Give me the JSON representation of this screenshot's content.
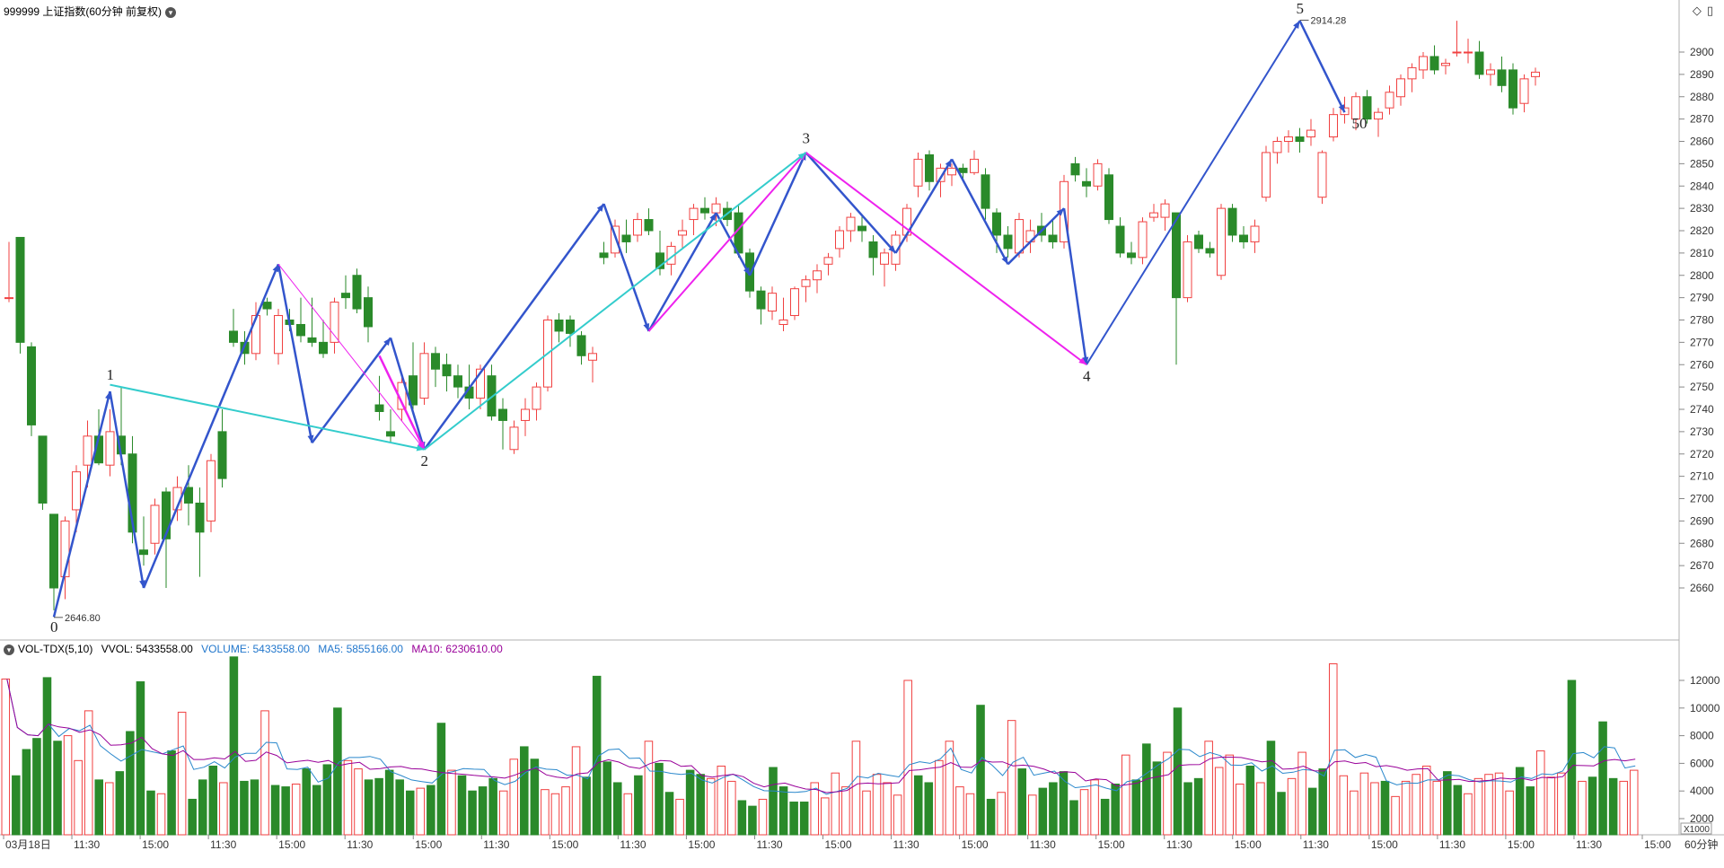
{
  "header": {
    "title": "999999 上证指数(60分钟 前复权)",
    "dropdown_icon": "chevron-down-icon",
    "right_icons": [
      "diamond-icon",
      "panel-icon"
    ]
  },
  "volume_panel": {
    "indicator": "VOL-TDX(5,10)",
    "vvol": "VVOL: 5433558.00",
    "volume": "VOLUME: 5433558.00",
    "ma5": "MA5: 5855166.00",
    "ma10": "MA10: 6230610.00",
    "unit": "X1000"
  },
  "time_axis": {
    "labels": [
      "03月18日",
      "11:30",
      "15:00",
      "11:30",
      "15:00",
      "11:30",
      "15:00",
      "11:30",
      "15:00",
      "11:30",
      "15:00",
      "11:30",
      "15:00",
      "11:30",
      "15:00",
      "11:30",
      "15:00",
      "11:30",
      "15:00",
      "11:30",
      "15:00",
      "11:30",
      "15:00",
      "11:30",
      "15:00"
    ],
    "period": "60分钟"
  },
  "colors": {
    "up": "#f04040",
    "down": "#2a8a2a",
    "wave_main": "#3355cc",
    "wave_magenta": "#ee22ee",
    "wave_cyan": "#33cccc",
    "ma5": "#2a88cc",
    "ma10": "#990099",
    "volume_label": "#2277cc"
  },
  "chart_data": [
    {
      "type": "candlestick",
      "title": "999999 上证指数(60分钟 前复权)",
      "y_ticks": [
        2660,
        2670,
        2680,
        2690,
        2700,
        2710,
        2720,
        2730,
        2740,
        2750,
        2760,
        2770,
        2780,
        2790,
        2800,
        2810,
        2820,
        2830,
        2840,
        2850,
        2860,
        2870,
        2880,
        2890,
        2900
      ],
      "ylim": [
        2642,
        2919
      ],
      "annotations": {
        "low_value": "2646.80",
        "high_value": "2914.28",
        "wave_labels": [
          "0",
          "1",
          "2",
          "3",
          "4",
          "5",
          "50"
        ]
      },
      "candles": [
        [
          2790,
          2815,
          2788,
          2790
        ],
        [
          2817,
          2817,
          2765,
          2770
        ],
        [
          2768,
          2770,
          2728,
          2733
        ],
        [
          2728,
          2728,
          2695,
          2698
        ],
        [
          2693,
          2693,
          2650,
          2660
        ],
        [
          2665,
          2692,
          2655,
          2690
        ],
        [
          2695,
          2715,
          2685,
          2712
        ],
        [
          2715,
          2735,
          2705,
          2728
        ],
        [
          2728,
          2740,
          2715,
          2716
        ],
        [
          2715,
          2740,
          2710,
          2730
        ],
        [
          2728,
          2750,
          2715,
          2720
        ],
        [
          2720,
          2728,
          2680,
          2685
        ],
        [
          2677,
          2692,
          2670,
          2675
        ],
        [
          2680,
          2700,
          2675,
          2697
        ],
        [
          2703,
          2705,
          2660,
          2682
        ],
        [
          2695,
          2710,
          2690,
          2705
        ],
        [
          2705,
          2715,
          2688,
          2698
        ],
        [
          2698,
          2705,
          2665,
          2685
        ],
        [
          2690,
          2720,
          2685,
          2717
        ],
        [
          2730,
          2740,
          2705,
          2709
        ],
        [
          2775,
          2785,
          2768,
          2770
        ],
        [
          2770,
          2775,
          2760,
          2765
        ],
        [
          2765,
          2788,
          2762,
          2782
        ],
        [
          2788,
          2790,
          2782,
          2785
        ],
        [
          2765,
          2785,
          2760,
          2782
        ],
        [
          2780,
          2785,
          2775,
          2778
        ],
        [
          2778,
          2790,
          2770,
          2773
        ],
        [
          2772,
          2790,
          2768,
          2770
        ],
        [
          2770,
          2780,
          2763,
          2765
        ],
        [
          2770,
          2790,
          2765,
          2788
        ],
        [
          2792,
          2800,
          2785,
          2790
        ],
        [
          2800,
          2803,
          2783,
          2785
        ],
        [
          2790,
          2795,
          2770,
          2777
        ],
        [
          2742,
          2755,
          2735,
          2739
        ],
        [
          2730,
          2740,
          2725,
          2728
        ],
        [
          2740,
          2755,
          2735,
          2752
        ],
        [
          2755,
          2770,
          2740,
          2742
        ],
        [
          2745,
          2770,
          2742,
          2765
        ],
        [
          2765,
          2768,
          2750,
          2758
        ],
        [
          2760,
          2765,
          2748,
          2755
        ],
        [
          2755,
          2760,
          2745,
          2750
        ],
        [
          2750,
          2760,
          2740,
          2745
        ],
        [
          2745,
          2760,
          2740,
          2758
        ],
        [
          2755,
          2760,
          2735,
          2737
        ],
        [
          2740,
          2745,
          2722,
          2735
        ],
        [
          2722,
          2735,
          2720,
          2732
        ],
        [
          2735,
          2745,
          2728,
          2740
        ],
        [
          2740,
          2752,
          2735,
          2750
        ],
        [
          2750,
          2782,
          2748,
          2780
        ],
        [
          2780,
          2783,
          2770,
          2775
        ],
        [
          2780,
          2782,
          2768,
          2774
        ],
        [
          2773,
          2775,
          2760,
          2764
        ],
        [
          2762,
          2768,
          2752,
          2765
        ],
        [
          2810,
          2815,
          2805,
          2808
        ],
        [
          2810,
          2825,
          2808,
          2822
        ],
        [
          2818,
          2825,
          2810,
          2815
        ],
        [
          2818,
          2828,
          2815,
          2825
        ],
        [
          2825,
          2830,
          2818,
          2820
        ],
        [
          2810,
          2820,
          2800,
          2803
        ],
        [
          2805,
          2815,
          2800,
          2813
        ],
        [
          2818,
          2825,
          2812,
          2820
        ],
        [
          2825,
          2832,
          2818,
          2830
        ],
        [
          2830,
          2835,
          2825,
          2828
        ],
        [
          2828,
          2835,
          2822,
          2832
        ],
        [
          2830,
          2833,
          2822,
          2825
        ],
        [
          2828,
          2832,
          2808,
          2810
        ],
        [
          2810,
          2812,
          2790,
          2793
        ],
        [
          2793,
          2795,
          2778,
          2785
        ],
        [
          2784,
          2795,
          2780,
          2792
        ],
        [
          2778,
          2790,
          2775,
          2780
        ],
        [
          2782,
          2795,
          2780,
          2794
        ],
        [
          2795,
          2800,
          2788,
          2798
        ],
        [
          2798,
          2805,
          2792,
          2802
        ],
        [
          2805,
          2810,
          2800,
          2808
        ],
        [
          2812,
          2822,
          2808,
          2820
        ],
        [
          2820,
          2828,
          2815,
          2826
        ],
        [
          2822,
          2827,
          2815,
          2820
        ],
        [
          2815,
          2818,
          2800,
          2808
        ],
        [
          2805,
          2812,
          2795,
          2810
        ],
        [
          2805,
          2820,
          2802,
          2818
        ],
        [
          2818,
          2832,
          2815,
          2830
        ],
        [
          2840,
          2855,
          2835,
          2852
        ],
        [
          2854,
          2856,
          2838,
          2842
        ],
        [
          2842,
          2850,
          2835,
          2848
        ],
        [
          2845,
          2850,
          2840,
          2848
        ],
        [
          2848,
          2850,
          2843,
          2846
        ],
        [
          2846,
          2856,
          2845,
          2852
        ],
        [
          2845,
          2848,
          2825,
          2830
        ],
        [
          2828,
          2830,
          2810,
          2818
        ],
        [
          2818,
          2822,
          2808,
          2812
        ],
        [
          2810,
          2828,
          2808,
          2825
        ],
        [
          2815,
          2825,
          2810,
          2820
        ],
        [
          2822,
          2828,
          2815,
          2818
        ],
        [
          2818,
          2825,
          2812,
          2815
        ],
        [
          2815,
          2845,
          2812,
          2842
        ],
        [
          2850,
          2853,
          2842,
          2845
        ],
        [
          2842,
          2848,
          2835,
          2840
        ],
        [
          2840,
          2852,
          2838,
          2850
        ],
        [
          2845,
          2848,
          2823,
          2825
        ],
        [
          2822,
          2826,
          2808,
          2810
        ],
        [
          2810,
          2815,
          2805,
          2808
        ],
        [
          2808,
          2826,
          2805,
          2824
        ],
        [
          2826,
          2832,
          2824,
          2828
        ],
        [
          2826,
          2834,
          2820,
          2832
        ],
        [
          2828,
          2828,
          2760,
          2790
        ],
        [
          2790,
          2818,
          2788,
          2815
        ],
        [
          2818,
          2820,
          2810,
          2812
        ],
        [
          2812,
          2815,
          2808,
          2810
        ],
        [
          2800,
          2832,
          2798,
          2830
        ],
        [
          2830,
          2832,
          2815,
          2818
        ],
        [
          2818,
          2822,
          2812,
          2815
        ],
        [
          2815,
          2825,
          2810,
          2822
        ],
        [
          2835,
          2858,
          2833,
          2855
        ],
        [
          2855,
          2862,
          2850,
          2860
        ],
        [
          2860,
          2865,
          2855,
          2862
        ],
        [
          2862,
          2866,
          2855,
          2860
        ],
        [
          2862,
          2870,
          2858,
          2865
        ],
        [
          2835,
          2856,
          2832,
          2855
        ],
        [
          2862,
          2875,
          2860,
          2872
        ],
        [
          2872,
          2880,
          2868,
          2875
        ],
        [
          2870,
          2882,
          2865,
          2880
        ],
        [
          2880,
          2883,
          2868,
          2870
        ],
        [
          2870,
          2875,
          2862,
          2873
        ],
        [
          2875,
          2885,
          2872,
          2882
        ],
        [
          2880,
          2890,
          2876,
          2888
        ],
        [
          2888,
          2895,
          2882,
          2893
        ],
        [
          2892,
          2900,
          2888,
          2898
        ],
        [
          2898,
          2903,
          2890,
          2892
        ],
        [
          2894,
          2897,
          2890,
          2895
        ],
        [
          2900,
          2914,
          2898,
          2900
        ],
        [
          2900,
          2906,
          2895,
          2900
        ],
        [
          2900,
          2905,
          2888,
          2890
        ],
        [
          2890,
          2895,
          2885,
          2892
        ],
        [
          2892,
          2898,
          2882,
          2885
        ],
        [
          2892,
          2895,
          2872,
          2875
        ],
        [
          2877,
          2890,
          2873,
          2888
        ],
        [
          2889,
          2893,
          2885,
          2891
        ]
      ]
    },
    {
      "type": "bar",
      "title": "VOL-TDX(5,10)",
      "y_ticks": [
        2000,
        4000,
        6000,
        8000,
        10000,
        12000
      ],
      "ylim": [
        0,
        14000
      ],
      "unit": "X1000",
      "values": [
        12100,
        5100,
        7000,
        7800,
        12200,
        7600,
        8000,
        6200,
        9800,
        4800,
        4600,
        5400,
        8300,
        11900,
        4000,
        3800,
        6900,
        9700,
        3400,
        4800,
        5800,
        4600,
        13700,
        4700,
        4800,
        9800,
        4400,
        4300,
        4500,
        5600,
        4400,
        5900,
        10000,
        6200,
        5600,
        4800,
        4900,
        5500,
        4800,
        4000,
        4200,
        4400,
        8900,
        5500,
        5100,
        4000,
        4300,
        4900,
        4000,
        6300,
        7200,
        6300,
        4100,
        3800,
        4300,
        7200,
        5000,
        12300,
        6100,
        4600,
        3800,
        5100,
        7600,
        6000,
        3900,
        3400,
        5500,
        5200,
        4900,
        5800,
        4700,
        3300,
        2900,
        3400,
        5700,
        4300,
        3200,
        3200,
        4600,
        3500,
        5300,
        4300,
        7600,
        4000,
        5200,
        4600,
        3700,
        12000,
        5100,
        4600,
        6200,
        7600,
        4300,
        3800,
        10200,
        3400,
        3900,
        9100,
        5600,
        3700,
        4200,
        4600,
        5400,
        3300,
        4100,
        4800,
        3400,
        4500,
        6600,
        4800,
        7400,
        6100,
        6800,
        10000,
        4600,
        4900,
        7600,
        5700,
        6600,
        4500,
        5800,
        4600,
        7600,
        3900,
        4900,
        6800,
        4200,
        5600,
        13200,
        5100,
        4000,
        5300,
        4600,
        4700,
        3600,
        4700,
        5200,
        5800,
        4700,
        5400,
        4400,
        3800,
        4900,
        5200,
        5300,
        4000,
        5700,
        4300,
        6900,
        5000,
        5300,
        12000,
        4700,
        5000,
        9000,
        4900,
        4700,
        5500
      ],
      "ma5_label": "MA5: 5855166.00",
      "ma10_label": "MA10: 6230610.00"
    }
  ]
}
